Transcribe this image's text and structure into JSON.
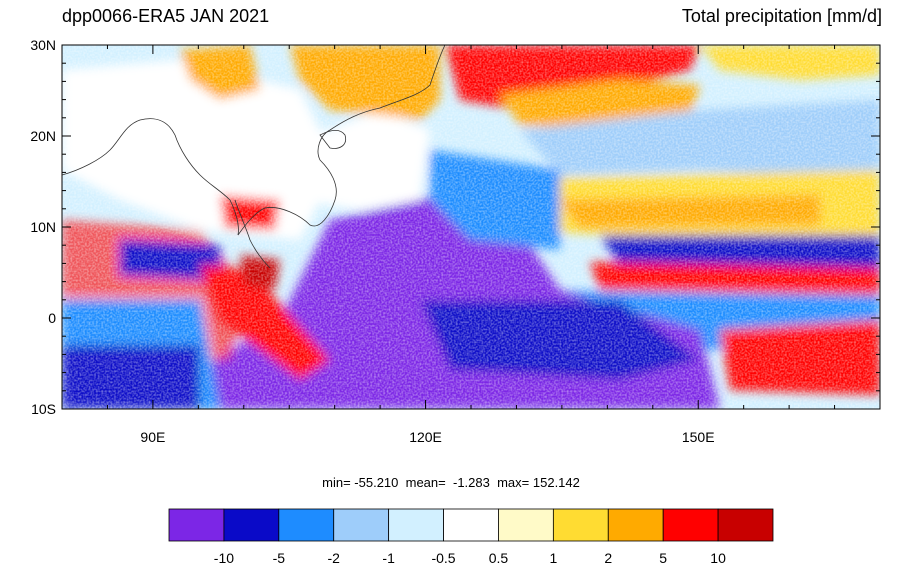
{
  "title_left": "dpp0066-ERA5 JAN 2021",
  "title_right": "Total precipitation [mm/d]",
  "map": {
    "lon_range": [
      80,
      170
    ],
    "lat_range": [
      -10,
      30
    ],
    "lat_ticks": [
      {
        "value": 30,
        "label": "30N"
      },
      {
        "value": 20,
        "label": "20N"
      },
      {
        "value": 10,
        "label": "10N"
      },
      {
        "value": 0,
        "label": "0"
      },
      {
        "value": -10,
        "label": "10S"
      }
    ],
    "lon_ticks": [
      {
        "value": 90,
        "label": "90E"
      },
      {
        "value": 120,
        "label": "120E"
      },
      {
        "value": 150,
        "label": "150E"
      }
    ]
  },
  "stats": {
    "min_label": "min=",
    "min": "-55.210",
    "mean_label": "mean=",
    "mean": "-1.283",
    "max_label": "max=",
    "max": "152.142"
  },
  "colorbar": {
    "colors": [
      "#7c26e6",
      "#0a0ac8",
      "#1e8cff",
      "#9ecdfa",
      "#d2f0ff",
      "#ffffff",
      "#fffac8",
      "#ffdc32",
      "#ffaa00",
      "#ff0000",
      "#c80000"
    ],
    "labels": [
      "-10",
      "-5",
      "-2",
      "-1",
      "-0.5",
      "0.5",
      "1",
      "2",
      "5",
      "10"
    ]
  }
}
